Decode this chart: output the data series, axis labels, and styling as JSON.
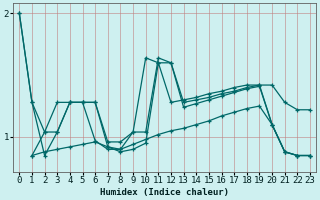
{
  "xlabel": "Humidex (Indice chaleur)",
  "background_color": "#cef0f0",
  "grid_color": "#40a0a0",
  "line_color": "#006868",
  "xlim": [
    -0.5,
    23.5
  ],
  "ylim": [
    0.72,
    2.08
  ],
  "yticks": [
    1,
    2
  ],
  "xticks": [
    0,
    1,
    2,
    3,
    4,
    5,
    6,
    7,
    8,
    9,
    10,
    11,
    12,
    13,
    14,
    15,
    16,
    17,
    18,
    19,
    20,
    21,
    22,
    23
  ],
  "line1_y": [
    2.0,
    1.28,
    1.04,
    1.04,
    1.28,
    1.28,
    1.28,
    0.96,
    0.96,
    1.04,
    1.04,
    1.64,
    1.6,
    1.28,
    1.3,
    1.32,
    1.35,
    1.37,
    1.4,
    1.42,
    1.42,
    1.28,
    1.22,
    1.22
  ],
  "line2_y": [
    1.28,
    0.85,
    1.04,
    1.28,
    1.28,
    1.28,
    0.97,
    0.9,
    0.9,
    1.04,
    1.64,
    1.6,
    1.28,
    1.3,
    1.32,
    1.35,
    1.37,
    1.4,
    1.42,
    1.42,
    1.1,
    0.88,
    0.85,
    0.85
  ],
  "line3_y": [
    1.28,
    0.85,
    0.88,
    0.9,
    0.92,
    0.94,
    0.96,
    0.92,
    0.9,
    0.94,
    0.98,
    1.02,
    1.05,
    1.07,
    1.1,
    1.13,
    1.17,
    1.2,
    1.23,
    1.25,
    1.1,
    0.88,
    0.85,
    0.85
  ],
  "line4_y": [
    2.0,
    1.28,
    0.85,
    1.04,
    1.28,
    1.28,
    1.28,
    0.92,
    0.88,
    0.9,
    0.95,
    1.6,
    1.6,
    1.24,
    1.27,
    1.3,
    1.33,
    1.36,
    1.39,
    1.41,
    1.1,
    0.88,
    0.85,
    0.85
  ]
}
